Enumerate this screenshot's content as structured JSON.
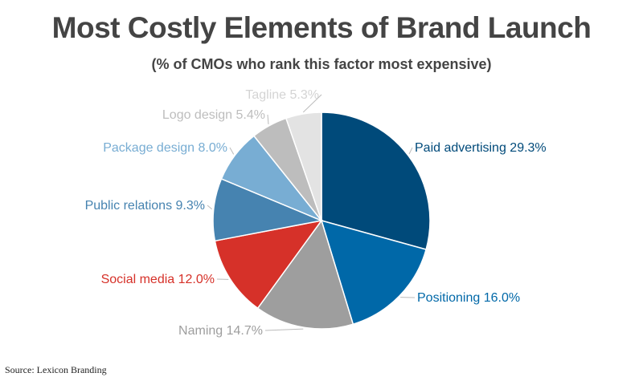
{
  "title": "Most Costly Elements of Brand Launch",
  "subtitle": "(% of CMOs who rank this factor most expensive)",
  "source": "Source: Lexicon Branding",
  "chart_data": {
    "type": "pie",
    "title": "Most Costly Elements of Brand Launch",
    "subtitle": "(% of CMOs who rank this factor most expensive)",
    "unit": "%",
    "slices": [
      {
        "label": "Paid advertising",
        "value": 29.3,
        "display": "Paid advertising 29.3%",
        "color": "#004a7a"
      },
      {
        "label": "Positioning",
        "value": 16.0,
        "display": "Positioning 16.0%",
        "color": "#0068a8"
      },
      {
        "label": "Naming",
        "value": 14.7,
        "display": "Naming 14.7%",
        "color": "#9e9e9e"
      },
      {
        "label": "Social media",
        "value": 12.0,
        "display": "Social media 12.0%",
        "color": "#d63129"
      },
      {
        "label": "Public relations",
        "value": 9.3,
        "display": "Public relations 9.3%",
        "color": "#4683b0"
      },
      {
        "label": "Package design",
        "value": 8.0,
        "display": "Package design 8.0%",
        "color": "#78add3"
      },
      {
        "label": "Logo design",
        "value": 5.4,
        "display": "Logo design 5.4%",
        "color": "#bdbdbd"
      },
      {
        "label": "Tagline",
        "value": 5.3,
        "display": "Tagline 5.3%",
        "color": "#e3e3e3"
      }
    ]
  }
}
